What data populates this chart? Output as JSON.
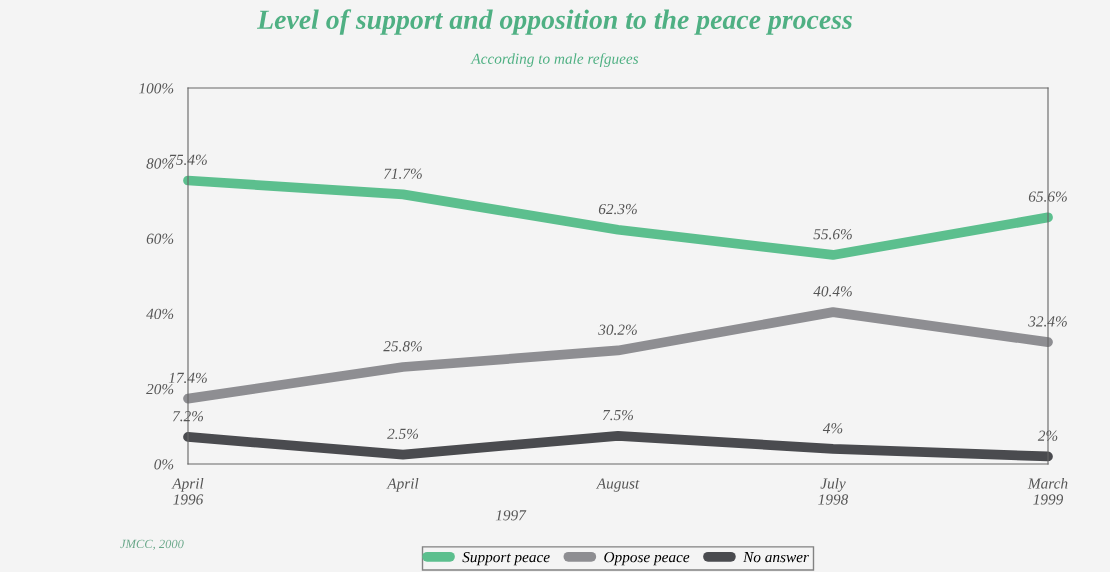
{
  "chart_data": {
    "type": "line",
    "title": "Level of support and opposition to the peace process",
    "subtitle": "According to male refguees",
    "categories": [
      "April\n1996",
      "April",
      "August",
      "July\n1998",
      "March\n1999"
    ],
    "series": [
      {
        "name": "Support peace",
        "color": "#5cbf8e",
        "values": [
          75.4,
          71.7,
          62.3,
          55.6,
          65.6
        ]
      },
      {
        "name": "Oppose peace",
        "color": "#8e8e92",
        "values": [
          17.4,
          25.8,
          30.2,
          40.4,
          32.4
        ]
      },
      {
        "name": "No answer",
        "color": "#4a4b4f",
        "values": [
          7.2,
          2.5,
          7.5,
          4,
          2
        ]
      }
    ],
    "value_labels": [
      [
        "75.4%",
        "71.7%",
        "62.3%",
        "55.6%",
        "65.6%"
      ],
      [
        "17.4%",
        "25.8%",
        "30.2%",
        "40.4%",
        "32.4%"
      ],
      [
        "7.2%",
        "2.5%",
        "7.5%",
        "4%",
        "2%"
      ]
    ],
    "ylim": [
      0,
      100
    ],
    "yticks": [
      {
        "value": 0,
        "label": "0%"
      },
      {
        "value": 20,
        "label": "20%"
      },
      {
        "value": 40,
        "label": "40%"
      },
      {
        "value": 60,
        "label": "60%"
      },
      {
        "value": 80,
        "label": "80%"
      },
      {
        "value": 100,
        "label": "100%"
      }
    ],
    "grid": false,
    "legend": "bottom",
    "marker": "none",
    "line_style": "solid",
    "annotations": [
      "1997",
      "JMCC, 2000"
    ]
  }
}
